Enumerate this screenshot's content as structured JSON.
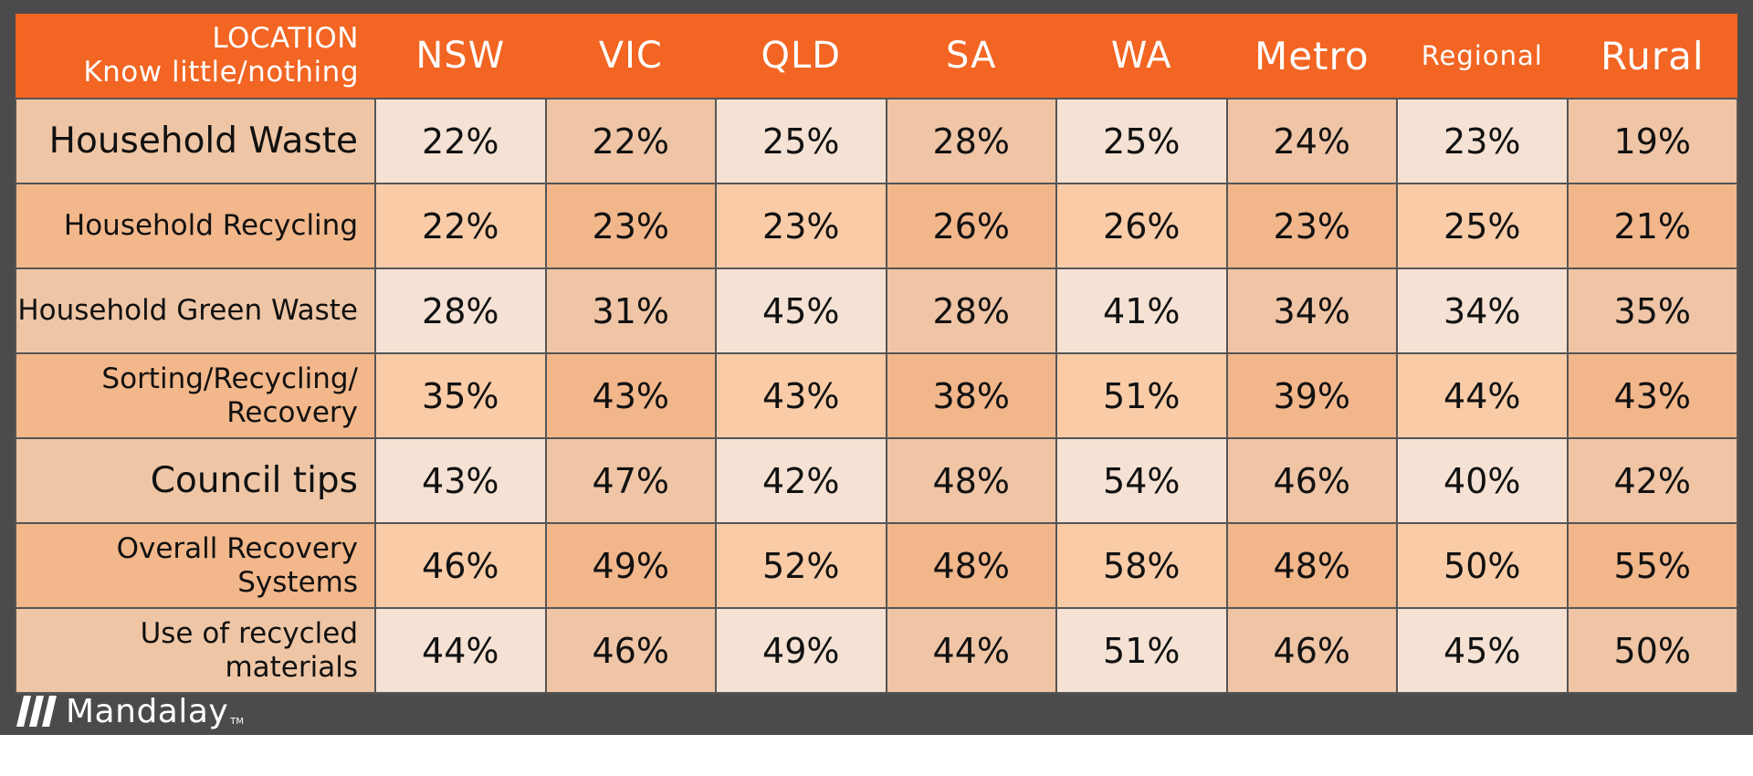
{
  "chart_data": {
    "type": "table",
    "header": {
      "corner_line1": "LOCATION",
      "corner_line2": "Know little/nothing"
    },
    "columns": [
      "NSW",
      "VIC",
      "QLD",
      "SA",
      "WA",
      "Metro",
      "Regional",
      "Rural"
    ],
    "rows": [
      {
        "label": "Household Waste",
        "values": [
          "22%",
          "22%",
          "25%",
          "28%",
          "25%",
          "24%",
          "23%",
          "19%"
        ]
      },
      {
        "label": "Household Recycling",
        "values": [
          "22%",
          "23%",
          "23%",
          "26%",
          "26%",
          "23%",
          "25%",
          "21%"
        ]
      },
      {
        "label": "Household Green Waste",
        "values": [
          "28%",
          "31%",
          "45%",
          "28%",
          "41%",
          "34%",
          "34%",
          "35%"
        ]
      },
      {
        "label": "Sorting/Recycling/ Recovery",
        "values": [
          "35%",
          "43%",
          "43%",
          "38%",
          "51%",
          "39%",
          "44%",
          "43%"
        ]
      },
      {
        "label": "Council tips",
        "values": [
          "43%",
          "47%",
          "42%",
          "48%",
          "54%",
          "46%",
          "40%",
          "42%"
        ]
      },
      {
        "label": "Overall Recovery Systems",
        "values": [
          "46%",
          "49%",
          "52%",
          "48%",
          "58%",
          "48%",
          "50%",
          "55%"
        ]
      },
      {
        "label": "Use of recycled materials",
        "values": [
          "44%",
          "46%",
          "49%",
          "44%",
          "51%",
          "46%",
          "45%",
          "50%"
        ]
      }
    ]
  },
  "branding": {
    "logo_text": "Mandalay",
    "logo_tm": "TM",
    "logo_icon": "mandalay-slashes-icon"
  },
  "colors": {
    "header": "#f26522",
    "frame": "#4b4b4b",
    "cell_light": "#f5e2d4",
    "cell_mid": "#efc5a6",
    "cell_peach": "#f9cca7",
    "cell_dark": "#f2b68b"
  }
}
